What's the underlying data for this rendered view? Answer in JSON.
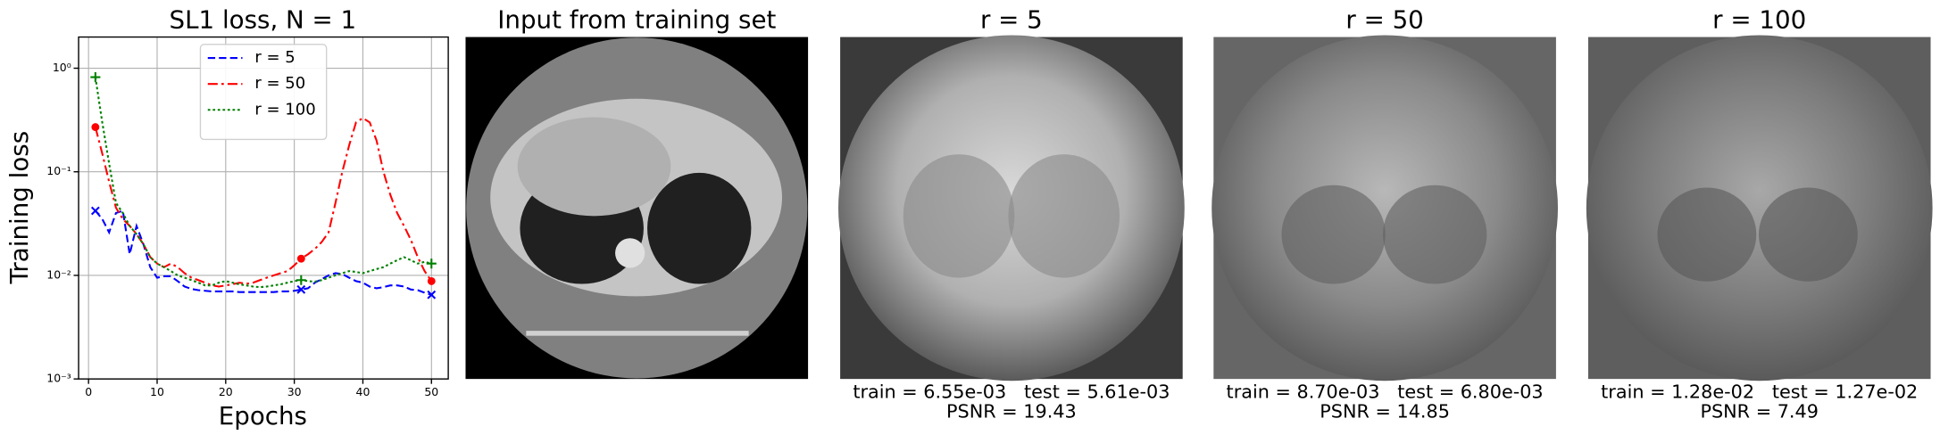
{
  "chart_data": {
    "type": "line",
    "title": "SL1 loss, N = 1",
    "xlabel": "Epochs",
    "ylabel": "Training loss",
    "x": [
      1,
      2,
      3,
      4,
      5,
      6,
      7,
      8,
      9,
      10,
      11,
      12,
      13,
      14,
      15,
      16,
      17,
      18,
      19,
      20,
      21,
      22,
      23,
      24,
      25,
      26,
      27,
      28,
      29,
      30,
      31,
      32,
      33,
      34,
      35,
      36,
      37,
      38,
      39,
      40,
      41,
      42,
      43,
      44,
      45,
      46,
      47,
      48,
      49,
      50
    ],
    "series": [
      {
        "name": "r = 5",
        "color": "#0000ff",
        "dash": "6,3",
        "marker": "x",
        "markers_at": [
          1,
          31,
          50
        ],
        "values": [
          0.042,
          0.035,
          0.026,
          0.04,
          0.042,
          0.016,
          0.03,
          0.02,
          0.012,
          0.0095,
          0.0098,
          0.0098,
          0.0088,
          0.0078,
          0.0074,
          0.0072,
          0.0071,
          0.007,
          0.007,
          0.007,
          0.007,
          0.0069,
          0.0069,
          0.0069,
          0.0069,
          0.0069,
          0.0069,
          0.007,
          0.007,
          0.0071,
          0.0073,
          0.0075,
          0.0085,
          0.0092,
          0.01,
          0.0105,
          0.0103,
          0.0095,
          0.0088,
          0.0085,
          0.0078,
          0.0075,
          0.0077,
          0.008,
          0.008,
          0.0078,
          0.0073,
          0.0072,
          0.0068,
          0.0065
        ]
      },
      {
        "name": "r = 50",
        "color": "#ff0000",
        "dash": "8,3,2,3",
        "marker": "o",
        "markers_at": [
          1,
          31,
          50
        ],
        "values": [
          0.27,
          0.15,
          0.08,
          0.045,
          0.035,
          0.03,
          0.025,
          0.02,
          0.015,
          0.013,
          0.012,
          0.013,
          0.012,
          0.0105,
          0.0095,
          0.009,
          0.0085,
          0.008,
          0.0078,
          0.008,
          0.0082,
          0.0085,
          0.0083,
          0.0085,
          0.009,
          0.0095,
          0.01,
          0.0105,
          0.011,
          0.0125,
          0.0145,
          0.016,
          0.018,
          0.021,
          0.026,
          0.05,
          0.1,
          0.18,
          0.3,
          0.33,
          0.3,
          0.2,
          0.1,
          0.06,
          0.04,
          0.03,
          0.022,
          0.015,
          0.011,
          0.0088
        ]
      },
      {
        "name": "r = 100",
        "color": "#008000",
        "dash": "2,2",
        "marker": "+",
        "markers_at": [
          1,
          31,
          50
        ],
        "values": [
          0.82,
          0.3,
          0.12,
          0.05,
          0.04,
          0.03,
          0.025,
          0.02,
          0.015,
          0.013,
          0.012,
          0.011,
          0.01,
          0.0095,
          0.009,
          0.0085,
          0.008,
          0.008,
          0.0085,
          0.0088,
          0.0085,
          0.0082,
          0.008,
          0.0078,
          0.0077,
          0.0078,
          0.008,
          0.0082,
          0.0085,
          0.0088,
          0.009,
          0.0088,
          0.0087,
          0.009,
          0.0095,
          0.01,
          0.0105,
          0.011,
          0.0108,
          0.0105,
          0.011,
          0.0115,
          0.012,
          0.013,
          0.014,
          0.015,
          0.014,
          0.013,
          0.0135,
          0.013
        ]
      }
    ],
    "xlim": [
      -1.45,
      52.45
    ],
    "xticks": [
      0,
      10,
      20,
      30,
      40,
      50
    ],
    "ylim": [
      0.001,
      2
    ],
    "log_y": true,
    "yticks": [
      {
        "value": 0.001,
        "label": "10⁻³"
      },
      {
        "value": 0.01,
        "label": "10⁻²"
      },
      {
        "value": 0.1,
        "label": "10⁻¹"
      },
      {
        "value": 1,
        "label": "10⁰"
      }
    ],
    "grid": true,
    "legend": "upper center"
  },
  "panels": [
    {
      "title": "Input from training set"
    },
    {
      "title": "r = 5",
      "caption": [
        "train = 6.55e-03   test = 5.61e-03",
        "PSNR = 19.43"
      ]
    },
    {
      "title": "r = 50",
      "caption": [
        "train = 8.70e-03   test = 6.80e-03",
        "PSNR = 14.85"
      ]
    },
    {
      "title": "r = 100",
      "caption": [
        "train = 1.28e-02   test = 1.27e-02",
        "PSNR = 7.49"
      ]
    }
  ]
}
